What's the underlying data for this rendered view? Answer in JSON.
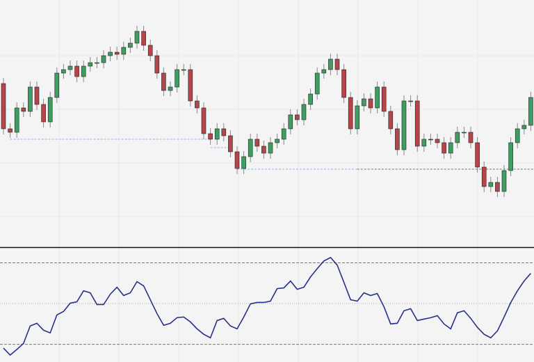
{
  "chart_data": [
    {
      "type": "candlestick",
      "open": [
        235,
        170,
        165,
        200,
        195,
        230,
        205,
        180,
        215,
        250,
        255,
        260,
        245,
        260,
        265,
        265,
        275,
        280,
        277,
        287,
        293,
        310,
        290,
        275,
        250,
        225,
        230,
        255,
        255,
        210,
        200,
        163,
        155,
        170,
        160,
        137,
        113,
        130,
        155,
        145,
        135,
        150,
        155,
        170,
        190,
        183,
        205,
        220,
        250,
        255,
        270,
        255,
        215,
        170,
        203,
        213,
        200,
        230,
        195,
        170,
        140,
        210,
        210,
        145,
        155,
        155,
        150,
        135,
        150,
        165,
        165,
        150,
        115,
        87,
        93,
        80,
        110,
        150,
        170,
        175
      ],
      "high": [
        243,
        178,
        208,
        208,
        238,
        238,
        213,
        223,
        258,
        263,
        268,
        268,
        268,
        273,
        273,
        283,
        288,
        288,
        295,
        301,
        318,
        318,
        298,
        283,
        258,
        238,
        263,
        263,
        263,
        218,
        208,
        171,
        178,
        178,
        168,
        145,
        138,
        163,
        163,
        153,
        158,
        163,
        178,
        198,
        198,
        213,
        228,
        258,
        263,
        278,
        278,
        263,
        223,
        211,
        221,
        221,
        238,
        238,
        203,
        178,
        218,
        218,
        218,
        163,
        163,
        163,
        158,
        158,
        173,
        173,
        173,
        158,
        123,
        101,
        101,
        118,
        158,
        178,
        183,
        223
      ],
      "low": [
        162,
        157,
        157,
        187,
        187,
        197,
        172,
        172,
        207,
        242,
        247,
        237,
        237,
        252,
        257,
        257,
        267,
        269,
        269,
        279,
        285,
        282,
        267,
        242,
        217,
        217,
        222,
        247,
        202,
        192,
        155,
        147,
        147,
        152,
        129,
        105,
        105,
        122,
        137,
        127,
        127,
        142,
        147,
        162,
        175,
        175,
        197,
        212,
        242,
        247,
        247,
        207,
        162,
        162,
        195,
        192,
        192,
        187,
        162,
        132,
        132,
        202,
        137,
        137,
        147,
        142,
        127,
        127,
        142,
        157,
        142,
        107,
        79,
        79,
        72,
        72,
        102,
        142,
        162,
        167
      ],
      "close": [
        170,
        165,
        200,
        195,
        230,
        205,
        180,
        215,
        250,
        255,
        260,
        245,
        260,
        265,
        265,
        275,
        280,
        277,
        287,
        293,
        310,
        290,
        275,
        250,
        225,
        230,
        255,
        255,
        210,
        200,
        163,
        155,
        170,
        160,
        137,
        113,
        130,
        155,
        145,
        135,
        150,
        155,
        170,
        190,
        183,
        205,
        220,
        250,
        255,
        270,
        255,
        215,
        170,
        203,
        213,
        200,
        230,
        195,
        170,
        140,
        210,
        210,
        145,
        155,
        155,
        150,
        135,
        150,
        165,
        165,
        150,
        115,
        87,
        93,
        80,
        110,
        150,
        170,
        175,
        215
      ],
      "up_color": "#3f9c62",
      "down_color": "#b5454b",
      "ylim": [
        0,
        355
      ],
      "grid": true,
      "levels": [
        {
          "value": 155,
          "start": 1,
          "end": 31,
          "color": "#8fb6e8"
        },
        {
          "value": 143,
          "start": 31,
          "end": 34,
          "color": "#8fb6e8"
        },
        {
          "value": 112,
          "start": 35,
          "end": 53,
          "color": "#8fb6e8"
        },
        {
          "value": 112,
          "start": 53,
          "end": 79,
          "color": "#777777"
        }
      ]
    },
    {
      "type": "line",
      "values": [
        17.2,
        12.1,
        16.2,
        20.7,
        33.5,
        35.5,
        30.4,
        28.4,
        41.6,
        44.2,
        50.3,
        51.3,
        59.4,
        57.9,
        49.3,
        49.3,
        56.9,
        62.0,
        55.9,
        57.9,
        66.1,
        63.0,
        52.8,
        42.6,
        34.0,
        35.5,
        39.6,
        40.1,
        36.5,
        31.4,
        27.4,
        24.8,
        37.5,
        39.1,
        33.5,
        31.4,
        40.1,
        49.8,
        50.8,
        50.8,
        51.8,
        61.0,
        61.5,
        66.6,
        60.5,
        62.0,
        69.6,
        75.7,
        81.3,
        83.9,
        78.3,
        65.6,
        52.8,
        51.8,
        57.9,
        55.9,
        57.4,
        47.7,
        35.0,
        35.5,
        44.7,
        46.2,
        37.5,
        38.6,
        39.6,
        41.1,
        35.0,
        31.4,
        43.2,
        44.7,
        39.1,
        32.5,
        27.4,
        24.8,
        29.9,
        40.1,
        50.8,
        59.4,
        66.6,
        72.2
      ],
      "color": "#27308a",
      "ylim": [
        7,
        91
      ],
      "levels": [
        20,
        50,
        80
      ],
      "grid": true
    }
  ]
}
